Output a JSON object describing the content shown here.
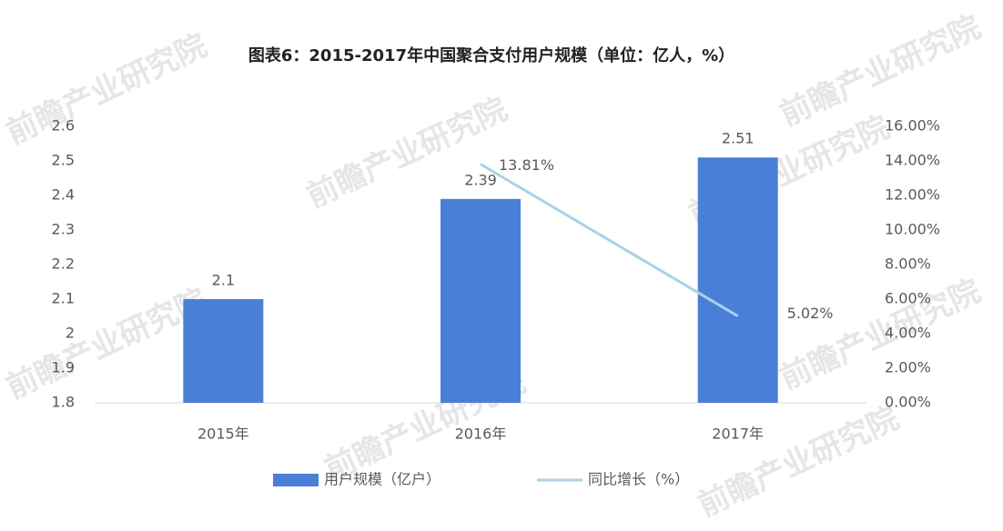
{
  "chart_data": {
    "type": "bar",
    "title": "图表6：2015-2017年中国聚合支付用户规模（单位：亿人，%）",
    "watermark": "前瞻产业研究院",
    "categories": [
      "2015年",
      "2016年",
      "2017年"
    ],
    "series": [
      {
        "name": "用户规模（亿户）",
        "color": "#4a7fd8",
        "values": [
          2.1,
          2.39,
          2.51
        ]
      },
      {
        "name": "同比增长（%）",
        "type": "line",
        "axis": "y2",
        "color": "#a8d2e6",
        "values": [
          null,
          13.81,
          5.02
        ],
        "value_labels": [
          null,
          "13.81%",
          "5.02%"
        ]
      }
    ],
    "ylim": [
      1.8,
      2.6
    ],
    "yticks": [
      1.8,
      1.9,
      2,
      2.1,
      2.2,
      2.3,
      2.4,
      2.5,
      2.6
    ],
    "y2lim": [
      0,
      16
    ],
    "y2ticks": [
      {
        "value": 0,
        "label": "0.00%"
      },
      {
        "value": 2,
        "label": "2.00%"
      },
      {
        "value": 4,
        "label": "4.00%"
      },
      {
        "value": 6,
        "label": "6.00%"
      },
      {
        "value": 8,
        "label": "8.00%"
      },
      {
        "value": 10,
        "label": "10.00%"
      },
      {
        "value": 12,
        "label": "12.00%"
      },
      {
        "value": 14,
        "label": "14.00%"
      },
      {
        "value": 16,
        "label": "16.00%"
      }
    ],
    "grid": false,
    "legend": "bottom"
  }
}
